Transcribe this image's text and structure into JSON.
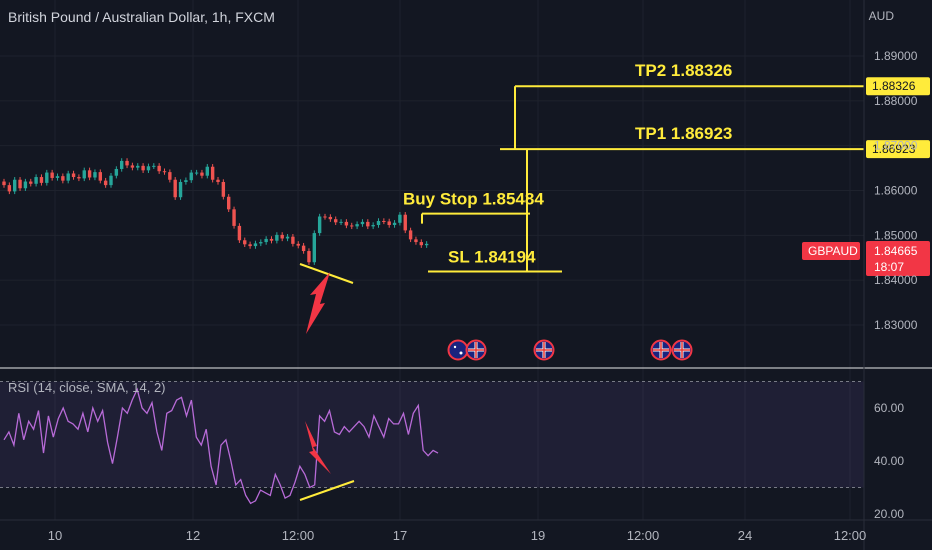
{
  "header": {
    "title": "British Pound / Australian Dollar, 1h, FXCM"
  },
  "axis": {
    "currency": "AUD"
  },
  "rsi": {
    "label": "RSI (14, close, SMA, 14, 2)"
  },
  "chart_data": [
    {
      "type": "candlestick",
      "title": "British Pound / Australian Dollar, 1h, FXCM",
      "ylabel": "AUD",
      "ylim": [
        1.8265,
        1.8952
      ],
      "yticks": [
        "1.89000",
        "1.88000",
        "1.87000",
        "1.86000",
        "1.85000",
        "1.84000",
        "1.83000"
      ],
      "yticks_values": [
        1.89,
        1.88,
        1.87,
        1.86,
        1.85,
        1.84,
        1.83
      ],
      "xticks": [
        "10",
        "12",
        "12:00",
        "17",
        "19",
        "12:00",
        "24",
        "12:00"
      ],
      "close_series": [
        1.8612,
        1.8598,
        1.8624,
        1.8605,
        1.862,
        1.8615,
        1.863,
        1.8617,
        1.864,
        1.8628,
        1.8632,
        1.8622,
        1.8638,
        1.863,
        1.8627,
        1.8645,
        1.8629,
        1.8641,
        1.8622,
        1.8612,
        1.8633,
        1.8648,
        1.8666,
        1.8656,
        1.8651,
        1.8655,
        1.8645,
        1.8654,
        1.8655,
        1.8643,
        1.8641,
        1.8624,
        1.8585,
        1.8619,
        1.8623,
        1.864,
        1.864,
        1.8633,
        1.8653,
        1.8624,
        1.8619,
        1.8586,
        1.8558,
        1.8521,
        1.8489,
        1.848,
        1.8476,
        1.8482,
        1.8485,
        1.8492,
        1.8488,
        1.8501,
        1.8493,
        1.8497,
        1.8481,
        1.8477,
        1.8465,
        1.844,
        1.8505,
        1.8542,
        1.8541,
        1.8536,
        1.8529,
        1.853,
        1.8522,
        1.852,
        1.8525,
        1.853,
        1.852,
        1.8523,
        1.8532,
        1.8531,
        1.8523,
        1.8528,
        1.8546,
        1.8511,
        1.8491,
        1.8485,
        1.8478,
        1.8481
      ],
      "annotations": [
        {
          "text": "TP2 1.88326",
          "price": 1.88326
        },
        {
          "text": "TP1 1.86923",
          "price": 1.86923
        },
        {
          "text": "Buy Stop 1.85484",
          "price": 1.85484
        },
        {
          "text": "SL 1.84194",
          "price": 1.84194
        }
      ],
      "price_labels": [
        {
          "text": "1.88326",
          "color": "#ffeb3b"
        },
        {
          "text": "1.86923",
          "color": "#ffeb3b"
        },
        {
          "text": "GBPAUD",
          "color": "#f23645"
        },
        {
          "text": "1.84665",
          "color": "#f23645"
        },
        {
          "text": "18:07",
          "color": "#f23645"
        }
      ],
      "grid": true
    },
    {
      "type": "line",
      "title": "RSI (14, close, SMA, 14, 2)",
      "ylim": [
        17.5,
        70
      ],
      "yticks": [
        "60.00",
        "40.00",
        "20.00"
      ],
      "yticks_values": [
        60,
        40,
        20
      ],
      "bands": [
        70,
        30
      ],
      "values": [
        48,
        51,
        46,
        58,
        48,
        55,
        52,
        59,
        43,
        57,
        49,
        56,
        60,
        55,
        54,
        52,
        58,
        51,
        60,
        55,
        59,
        47,
        39,
        49,
        60,
        58,
        63,
        67,
        60,
        58,
        62,
        51,
        44,
        58,
        59,
        63,
        64,
        57,
        63,
        49,
        46,
        52,
        38,
        31,
        46,
        48,
        40,
        31,
        33,
        27,
        24,
        25,
        29,
        28,
        27,
        35,
        31,
        26,
        27,
        32,
        38,
        35,
        30,
        31,
        57,
        55,
        59,
        51,
        50,
        53,
        51,
        53,
        55,
        53,
        49,
        57,
        53,
        49,
        56,
        54,
        54,
        58,
        50,
        58,
        61,
        44,
        42,
        44,
        43
      ]
    }
  ],
  "colors": {
    "up": "#26a69a",
    "down": "#ef5350",
    "annotation": "#ffeb3b",
    "rsi": "#b86bd8",
    "arrow": "#f23645"
  }
}
